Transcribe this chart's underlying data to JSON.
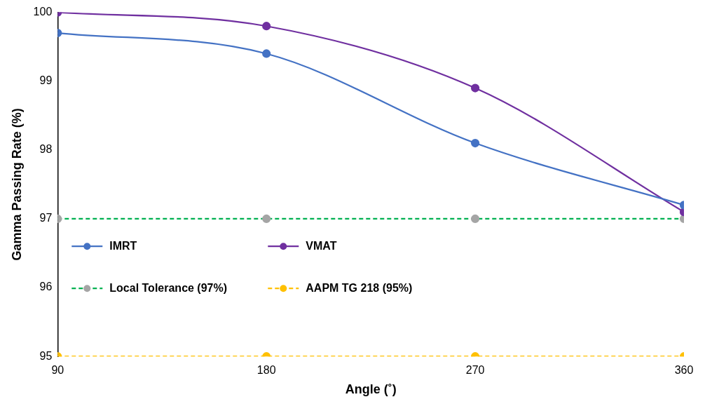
{
  "chart_data": {
    "type": "line",
    "xlabel": "Angle (˚)",
    "ylabel": "Gamma Passing Rate (%)",
    "x": [
      90,
      180,
      270,
      360
    ],
    "xlim": [
      90,
      360
    ],
    "xticks": [
      90,
      180,
      270,
      360
    ],
    "ylim": [
      95,
      100
    ],
    "yticks": [
      95,
      96,
      97,
      98,
      99,
      100
    ],
    "grid": false,
    "legend": "bottom left",
    "marker": "circle",
    "series": [
      {
        "name": "IMRT",
        "color": "#4472c4",
        "values": [
          99.7,
          99.4,
          98.1,
          97.2
        ],
        "line_style": "solid"
      },
      {
        "name": "VMAT",
        "color": "#7030a0",
        "values": [
          100,
          99.8,
          98.9,
          97.1
        ],
        "line_style": "solid"
      },
      {
        "name": "Local Tolerance (97%)",
        "color": "#00b050",
        "colors": [
          "#a5a5a5",
          "#a5a5a5",
          "#a5a5a5",
          "#a5a5a5"
        ],
        "values": [
          97,
          97,
          97,
          97
        ],
        "line_style": "dashed"
      },
      {
        "name": "AAPM TG 218 (95%)",
        "color": "#ffc000",
        "values": [
          95,
          95,
          95,
          95
        ],
        "line_style": "dashed"
      }
    ]
  }
}
